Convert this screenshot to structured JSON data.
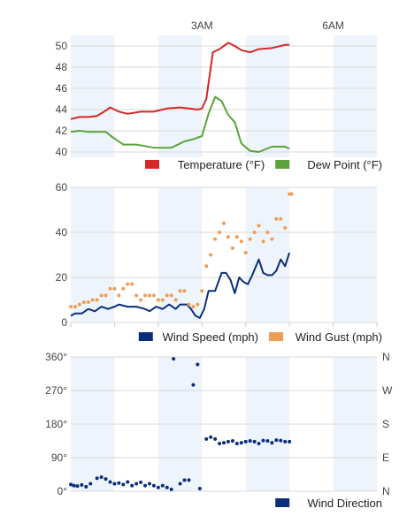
{
  "time_axis": {
    "labels": [
      {
        "text": "3AM",
        "hour": 3
      },
      {
        "text": "6AM",
        "hour": 6
      }
    ],
    "start_hour": 0.0,
    "end_hour": 7.0,
    "shaded_bands": [
      [
        0.0,
        1.0
      ],
      [
        2.0,
        3.0
      ],
      [
        4.0,
        5.0
      ],
      [
        6.0,
        7.0
      ]
    ],
    "band_color": "#eef4fb"
  },
  "chart_data": [
    {
      "type": "line",
      "panel": "temperature",
      "ylim": [
        39.5,
        51
      ],
      "yticks": [
        40,
        42,
        44,
        46,
        48,
        50
      ],
      "series": [
        {
          "name": "Temperature (°F)",
          "color": "#d62728",
          "points": [
            [
              0.0,
              43.1
            ],
            [
              0.2,
              43.3
            ],
            [
              0.4,
              43.3
            ],
            [
              0.6,
              43.4
            ],
            [
              0.8,
              43.9
            ],
            [
              0.9,
              44.2
            ],
            [
              1.1,
              43.8
            ],
            [
              1.3,
              43.6
            ],
            [
              1.6,
              43.8
            ],
            [
              1.9,
              43.8
            ],
            [
              2.2,
              44.1
            ],
            [
              2.5,
              44.2
            ],
            [
              2.7,
              44.1
            ],
            [
              2.9,
              44.0
            ],
            [
              3.0,
              44.1
            ],
            [
              3.1,
              45.0
            ],
            [
              3.25,
              49.4
            ],
            [
              3.4,
              49.7
            ],
            [
              3.6,
              50.3
            ],
            [
              3.75,
              50.0
            ],
            [
              3.9,
              49.6
            ],
            [
              4.1,
              49.4
            ],
            [
              4.3,
              49.7
            ],
            [
              4.6,
              49.8
            ],
            [
              4.9,
              50.1
            ],
            [
              5.0,
              50.1
            ]
          ]
        },
        {
          "name": "Dew Point (°F)",
          "color": "#5aa33b",
          "points": [
            [
              0.0,
              41.9
            ],
            [
              0.2,
              42.0
            ],
            [
              0.4,
              41.9
            ],
            [
              0.6,
              41.9
            ],
            [
              0.8,
              41.9
            ],
            [
              0.95,
              41.4
            ],
            [
              1.2,
              40.7
            ],
            [
              1.5,
              40.7
            ],
            [
              1.9,
              40.4
            ],
            [
              2.3,
              40.4
            ],
            [
              2.6,
              41.0
            ],
            [
              2.8,
              41.2
            ],
            [
              3.0,
              41.5
            ],
            [
              3.15,
              43.6
            ],
            [
              3.3,
              45.2
            ],
            [
              3.45,
              44.8
            ],
            [
              3.6,
              43.5
            ],
            [
              3.75,
              42.8
            ],
            [
              3.9,
              40.8
            ],
            [
              4.1,
              40.1
            ],
            [
              4.3,
              40.0
            ],
            [
              4.6,
              40.5
            ],
            [
              4.9,
              40.5
            ],
            [
              5.0,
              40.3
            ]
          ]
        }
      ]
    },
    {
      "type": "line",
      "panel": "wind",
      "ylim": [
        0,
        60
      ],
      "yticks": [
        0,
        20,
        40,
        60
      ],
      "series": [
        {
          "name": "Wind Speed (mph)",
          "color": "#0b2e7a",
          "points": [
            [
              0.0,
              3
            ],
            [
              0.1,
              4
            ],
            [
              0.25,
              4
            ],
            [
              0.4,
              6
            ],
            [
              0.55,
              5
            ],
            [
              0.7,
              7
            ],
            [
              0.85,
              6
            ],
            [
              1.0,
              7
            ],
            [
              1.1,
              8
            ],
            [
              1.3,
              7
            ],
            [
              1.5,
              7
            ],
            [
              1.7,
              6
            ],
            [
              1.8,
              5
            ],
            [
              1.95,
              7
            ],
            [
              2.1,
              6
            ],
            [
              2.25,
              8
            ],
            [
              2.4,
              6
            ],
            [
              2.5,
              8
            ],
            [
              2.65,
              8
            ],
            [
              2.75,
              6
            ],
            [
              2.85,
              3
            ],
            [
              2.95,
              2
            ],
            [
              3.05,
              6
            ],
            [
              3.15,
              14
            ],
            [
              3.3,
              14
            ],
            [
              3.45,
              22
            ],
            [
              3.55,
              22
            ],
            [
              3.65,
              19
            ],
            [
              3.75,
              13
            ],
            [
              3.85,
              20
            ],
            [
              3.95,
              18
            ],
            [
              4.05,
              17
            ],
            [
              4.15,
              21
            ],
            [
              4.3,
              28
            ],
            [
              4.4,
              22
            ],
            [
              4.5,
              21
            ],
            [
              4.6,
              21
            ],
            [
              4.7,
              23
            ],
            [
              4.8,
              28
            ],
            [
              4.9,
              25
            ],
            [
              5.0,
              31
            ]
          ]
        },
        {
          "name": "Wind Gust (mph)",
          "color": "#f09c55",
          "marker": "dots",
          "points": [
            [
              0.0,
              7
            ],
            [
              0.1,
              7
            ],
            [
              0.2,
              8
            ],
            [
              0.3,
              9
            ],
            [
              0.4,
              9
            ],
            [
              0.5,
              10
            ],
            [
              0.6,
              10
            ],
            [
              0.7,
              12
            ],
            [
              0.8,
              12
            ],
            [
              0.9,
              15
            ],
            [
              1.0,
              15
            ],
            [
              1.1,
              12
            ],
            [
              1.2,
              15
            ],
            [
              1.3,
              17
            ],
            [
              1.4,
              17
            ],
            [
              1.5,
              12
            ],
            [
              1.6,
              10
            ],
            [
              1.7,
              12
            ],
            [
              1.8,
              12
            ],
            [
              1.9,
              12
            ],
            [
              2.0,
              10
            ],
            [
              2.1,
              10
            ],
            [
              2.2,
              12
            ],
            [
              2.3,
              12
            ],
            [
              2.4,
              10
            ],
            [
              2.5,
              14
            ],
            [
              2.6,
              14
            ],
            [
              2.7,
              8
            ],
            [
              2.8,
              7
            ],
            [
              2.9,
              8
            ],
            [
              3.0,
              14
            ],
            [
              3.1,
              25
            ],
            [
              3.2,
              30
            ],
            [
              3.3,
              37
            ],
            [
              3.4,
              40
            ],
            [
              3.5,
              44
            ],
            [
              3.6,
              38
            ],
            [
              3.7,
              33
            ],
            [
              3.8,
              38
            ],
            [
              3.9,
              36
            ],
            [
              4.0,
              31
            ],
            [
              4.1,
              37
            ],
            [
              4.2,
              40
            ],
            [
              4.3,
              43
            ],
            [
              4.4,
              36
            ],
            [
              4.5,
              40
            ],
            [
              4.6,
              37
            ],
            [
              4.7,
              46
            ],
            [
              4.8,
              46
            ],
            [
              4.9,
              42
            ],
            [
              5.0,
              57
            ],
            [
              5.05,
              57
            ]
          ]
        }
      ]
    },
    {
      "type": "scatter",
      "panel": "wind_direction",
      "ylim": [
        0,
        360
      ],
      "yticks": [
        {
          "value": 0,
          "label": "0°",
          "right": "N"
        },
        {
          "value": 90,
          "label": "90°",
          "right": "E"
        },
        {
          "value": 180,
          "label": "180°",
          "right": "S"
        },
        {
          "value": 270,
          "label": "270°",
          "right": "W"
        },
        {
          "value": 360,
          "label": "360°",
          "right": "N"
        }
      ],
      "series": [
        {
          "name": "Wind Direction",
          "color": "#0b2e7a",
          "points": [
            [
              0.0,
              18
            ],
            [
              0.07,
              15
            ],
            [
              0.15,
              14
            ],
            [
              0.25,
              17
            ],
            [
              0.35,
              12
            ],
            [
              0.45,
              20
            ],
            [
              0.6,
              35
            ],
            [
              0.7,
              38
            ],
            [
              0.8,
              33
            ],
            [
              0.9,
              25
            ],
            [
              1.0,
              20
            ],
            [
              1.1,
              22
            ],
            [
              1.2,
              18
            ],
            [
              1.3,
              25
            ],
            [
              1.4,
              15
            ],
            [
              1.5,
              20
            ],
            [
              1.6,
              24
            ],
            [
              1.7,
              15
            ],
            [
              1.8,
              20
            ],
            [
              1.9,
              15
            ],
            [
              2.0,
              10
            ],
            [
              2.1,
              15
            ],
            [
              2.2,
              10
            ],
            [
              2.3,
              5
            ],
            [
              2.35,
              355
            ],
            [
              2.5,
              20
            ],
            [
              2.6,
              30
            ],
            [
              2.7,
              30
            ],
            [
              2.8,
              285
            ],
            [
              2.9,
              340
            ],
            [
              2.95,
              7
            ],
            [
              3.1,
              140
            ],
            [
              3.2,
              145
            ],
            [
              3.3,
              140
            ],
            [
              3.4,
              128
            ],
            [
              3.5,
              130
            ],
            [
              3.6,
              133
            ],
            [
              3.7,
              135
            ],
            [
              3.8,
              128
            ],
            [
              3.9,
              130
            ],
            [
              4.0,
              133
            ],
            [
              4.1,
              135
            ],
            [
              4.2,
              133
            ],
            [
              4.3,
              128
            ],
            [
              4.4,
              136
            ],
            [
              4.5,
              135
            ],
            [
              4.6,
              130
            ],
            [
              4.7,
              137
            ],
            [
              4.8,
              136
            ],
            [
              4.9,
              133
            ],
            [
              5.0,
              133
            ]
          ]
        }
      ]
    }
  ]
}
